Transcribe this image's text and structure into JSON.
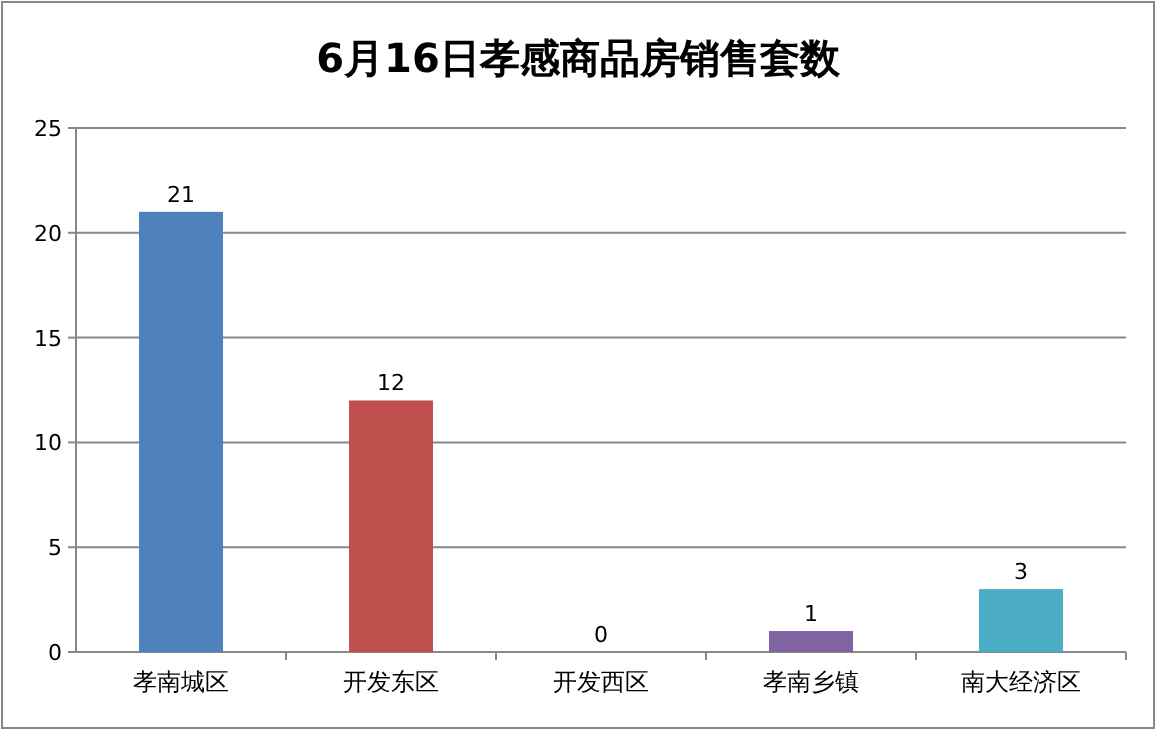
{
  "chart_data": {
    "type": "bar",
    "title": "6月16日孝感商品房销售套数",
    "categories": [
      "孝南城区",
      "开发东区",
      "开发西区",
      "孝南乡镇",
      "南大经济区"
    ],
    "values": [
      21,
      12,
      0,
      1,
      3
    ],
    "colors": [
      "#4f81bd",
      "#c0504d",
      "#9bbb59",
      "#8064a2",
      "#4bacc6"
    ],
    "ylim": [
      0,
      25
    ],
    "yticks": [
      0,
      5,
      10,
      15,
      20,
      25
    ],
    "grid": "y",
    "data_labels": true
  }
}
